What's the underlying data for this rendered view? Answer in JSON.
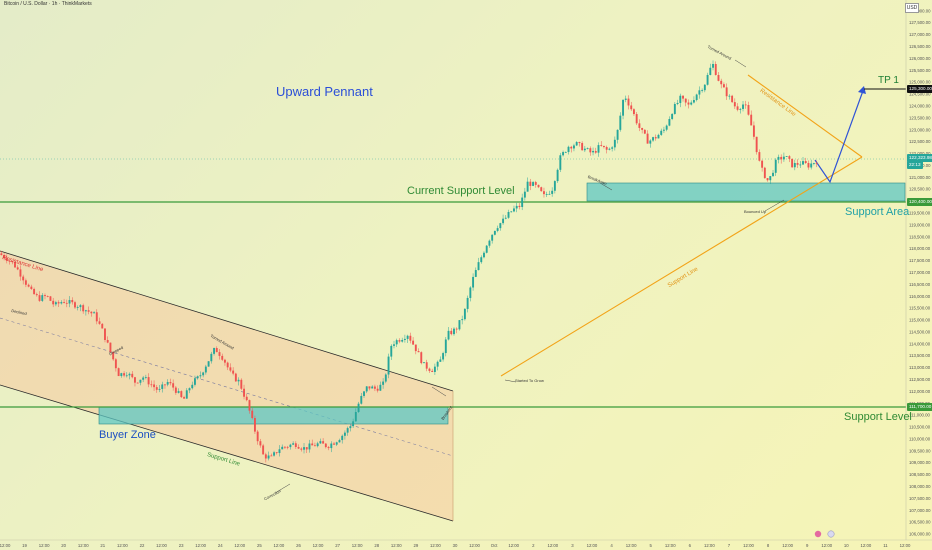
{
  "header": {
    "symbol_title": "Bitcoin / U.S. Dollar · 1h · ThinkMarkets",
    "currency": "USD"
  },
  "price_axis": {
    "ticks": [
      "128,000.00",
      "127,500.00",
      "127,000.00",
      "126,500.00",
      "126,000.00",
      "125,500.00",
      "125,000.00",
      "124,500.00",
      "124,000.00",
      "123,500.00",
      "123,000.00",
      "122,500.00",
      "122,000.00",
      "121,500.00",
      "121,000.00",
      "120,500.00",
      "120,000.00",
      "119,500.00",
      "119,000.00",
      "118,500.00",
      "118,000.00",
      "117,500.00",
      "117,000.00",
      "116,500.00",
      "116,000.00",
      "115,500.00",
      "115,000.00",
      "114,500.00",
      "114,000.00",
      "113,500.00",
      "113,000.00",
      "112,500.00",
      "112,000.00",
      "111,500.00",
      "111,000.00",
      "110,500.00",
      "110,000.00",
      "109,500.00",
      "109,000.00",
      "108,500.00",
      "108,000.00",
      "107,500.00",
      "107,000.00",
      "106,500.00",
      "106,000.00"
    ],
    "tp_price": "125,300.00",
    "current_price": "122,323.98",
    "current_countdown": "22:13",
    "support_area_price": "120,400.00",
    "support_level_price": "111,700.00"
  },
  "time_axis": {
    "labels": [
      "12:00",
      "19",
      "12:00",
      "20",
      "12:00",
      "21",
      "12:00",
      "22",
      "12:00",
      "23",
      "12:00",
      "24",
      "12:00",
      "25",
      "12:00",
      "26",
      "12:00",
      "27",
      "12:00",
      "28",
      "12:00",
      "29",
      "12:00",
      "30",
      "12:00",
      "Oct",
      "12:00",
      "2",
      "12:00",
      "3",
      "12:00",
      "4",
      "12:00",
      "5",
      "12:00",
      "6",
      "12:00",
      "7",
      "12:00",
      "8",
      "12:00",
      "9",
      "12:00",
      "10",
      "12:00",
      "11",
      "12:00"
    ]
  },
  "annotations": {
    "title": "Upward Pennant",
    "tp": "TP 1",
    "current_support": "Current Support Level",
    "support_area": "Support Area",
    "support_level": "Support Level",
    "buyer_zone": "Buyer Zone",
    "resistance_line_left": "Resistance Line",
    "support_line_left": "Support Line",
    "resistance_line_right": "Resistance Line",
    "support_line_right": "Support Line",
    "declined": "Declined",
    "dropped": "Dropped",
    "turned_around": "Turned Around",
    "correction": "Correction",
    "breakout": "Breakout",
    "started_to_grow": "Started To Grow",
    "breakdown": "Breakdown",
    "turned_around_top": "Turned Around",
    "bounced_up": "Bounced Up"
  },
  "colors": {
    "up": "#26a69a",
    "down": "#ef5350",
    "support_green": "#3a9a3a",
    "support_zone": "#3dc3c0",
    "channel_fill": "#f6caa0",
    "pennant_orange": "#f2a318",
    "projection_blue": "#2f53d6"
  },
  "chart_data": {
    "type": "candlestick",
    "symbol": "Bitcoin / U.S. Dollar",
    "interval": "1h",
    "ylim": [
      106000,
      128500
    ],
    "levels": {
      "take_profit": 125300,
      "current_support": 120400,
      "support_level": 111700,
      "current_price": 122323.98
    },
    "zones": {
      "support_area": [
        120400,
        121400
      ],
      "buyer_zone": [
        111000,
        111700
      ]
    },
    "path": [
      [
        0,
        117800
      ],
      [
        1,
        117600
      ],
      [
        2,
        117300
      ],
      [
        3,
        116800
      ],
      [
        4,
        116200
      ],
      [
        5,
        115900
      ],
      [
        6,
        116000
      ],
      [
        7,
        115600
      ],
      [
        8,
        115800
      ],
      [
        9,
        115700
      ],
      [
        10,
        115600
      ],
      [
        11,
        115400
      ],
      [
        12,
        115200
      ],
      [
        13,
        114500
      ],
      [
        14,
        113600
      ],
      [
        15,
        112700
      ],
      [
        16,
        112800
      ],
      [
        17,
        112400
      ],
      [
        18,
        112600
      ],
      [
        19,
        112300
      ],
      [
        20,
        112000
      ],
      [
        21,
        112400
      ],
      [
        22,
        112100
      ],
      [
        23,
        111600
      ],
      [
        24,
        112300
      ],
      [
        25,
        112600
      ],
      [
        26,
        113200
      ],
      [
        27,
        113800
      ],
      [
        28,
        113400
      ],
      [
        29,
        112700
      ],
      [
        30,
        112400
      ],
      [
        31,
        111500
      ],
      [
        32,
        110300
      ],
      [
        33,
        109300
      ],
      [
        34,
        109200
      ],
      [
        35,
        109600
      ],
      [
        36,
        109700
      ],
      [
        37,
        109800
      ],
      [
        38,
        109600
      ],
      [
        39,
        109700
      ],
      [
        40,
        109800
      ],
      [
        41,
        109700
      ],
      [
        42,
        109900
      ],
      [
        43,
        110200
      ],
      [
        44,
        110600
      ],
      [
        45,
        111600
      ],
      [
        46,
        112200
      ],
      [
        47,
        112100
      ],
      [
        48,
        112300
      ],
      [
        49,
        114000
      ],
      [
        50,
        114200
      ],
      [
        51,
        114400
      ],
      [
        52,
        113800
      ],
      [
        53,
        113100
      ],
      [
        54,
        112900
      ],
      [
        55,
        113200
      ],
      [
        56,
        114400
      ],
      [
        57,
        114600
      ],
      [
        58,
        115200
      ],
      [
        59,
        116600
      ],
      [
        60,
        117500
      ],
      [
        61,
        118300
      ],
      [
        62,
        118900
      ],
      [
        63,
        119200
      ],
      [
        64,
        119600
      ],
      [
        65,
        119800
      ],
      [
        66,
        120800
      ],
      [
        67,
        120600
      ],
      [
        68,
        120200
      ],
      [
        69,
        120500
      ],
      [
        70,
        121800
      ],
      [
        71,
        122300
      ],
      [
        72,
        122400
      ],
      [
        73,
        122200
      ],
      [
        74,
        122000
      ],
      [
        75,
        122300
      ],
      [
        76,
        122100
      ],
      [
        77,
        122600
      ],
      [
        78,
        124500
      ],
      [
        79,
        123800
      ],
      [
        80,
        123000
      ],
      [
        81,
        122500
      ],
      [
        82,
        122700
      ],
      [
        83,
        123000
      ],
      [
        84,
        123800
      ],
      [
        85,
        124300
      ],
      [
        86,
        124000
      ],
      [
        87,
        124500
      ],
      [
        88,
        124900
      ],
      [
        89,
        125800
      ],
      [
        90,
        124900
      ],
      [
        91,
        124400
      ],
      [
        92,
        123900
      ],
      [
        93,
        124100
      ],
      [
        94,
        123000
      ],
      [
        95,
        121400
      ],
      [
        96,
        120800
      ],
      [
        97,
        121700
      ],
      [
        98,
        121900
      ],
      [
        99,
        121500
      ],
      [
        100,
        121600
      ],
      [
        101,
        121500
      ],
      [
        102,
        121700
      ]
    ]
  }
}
